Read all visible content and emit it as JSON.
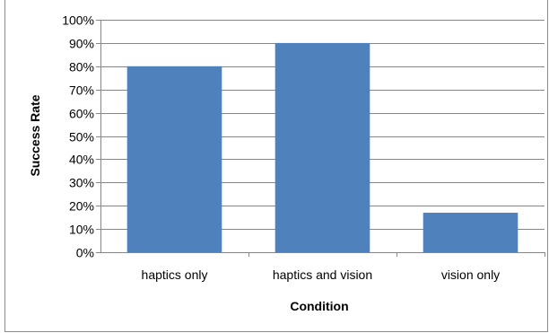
{
  "chart_data": {
    "type": "bar",
    "title": "",
    "xlabel": "Condition",
    "ylabel": "Success Rate",
    "categories": [
      "haptics only",
      "haptics and vision",
      "vision only"
    ],
    "values": [
      0.8,
      0.9,
      0.17
    ],
    "y_ticks": [
      "0%",
      "10%",
      "20%",
      "30%",
      "40%",
      "50%",
      "60%",
      "70%",
      "80%",
      "90%",
      "100%"
    ],
    "ylim": [
      0,
      1
    ],
    "y_grid": true,
    "legend": "none",
    "bar_color": "#4f81bd",
    "grid_color": "#868686"
  }
}
